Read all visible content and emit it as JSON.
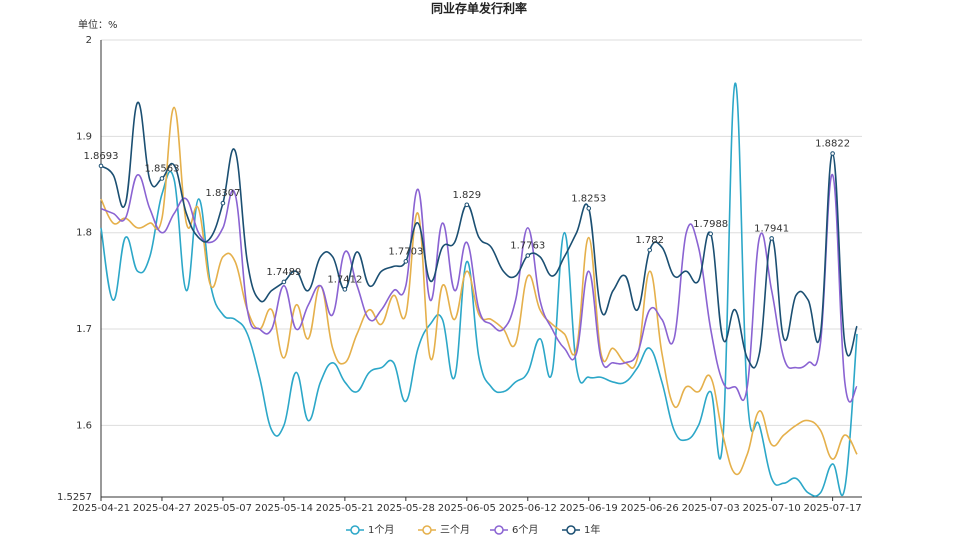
{
  "chart_data": {
    "type": "line",
    "title": "同业存单发行利率",
    "unit_label": "单位：%",
    "categories": [
      "2025-04-21",
      null,
      null,
      null,
      null,
      "2025-04-27",
      null,
      null,
      null,
      null,
      "2025-05-07",
      null,
      null,
      null,
      null,
      "2025-05-14",
      null,
      null,
      null,
      null,
      "2025-05-21",
      null,
      null,
      null,
      null,
      "2025-05-28",
      null,
      null,
      null,
      null,
      "2025-06-05",
      null,
      null,
      null,
      null,
      "2025-06-12",
      null,
      null,
      null,
      null,
      "2025-06-19",
      null,
      null,
      null,
      null,
      "2025-06-26",
      null,
      null,
      null,
      null,
      "2025-07-03",
      null,
      null,
      null,
      null,
      "2025-07-10",
      null,
      null,
      null,
      null,
      "2025-07-17",
      null,
      null
    ],
    "ylim": [
      1.5257,
      2
    ],
    "yticks": [
      1.5257,
      1.6,
      1.7,
      1.8,
      1.9,
      2
    ],
    "grid": true,
    "legend": "bottom",
    "smooth": true,
    "series": [
      {
        "name": "1个月",
        "color": "#2ca7c8",
        "values": [
          1.805,
          1.73,
          1.795,
          1.76,
          1.775,
          1.84,
          1.855,
          1.74,
          1.835,
          1.745,
          1.715,
          1.71,
          1.695,
          1.65,
          1.595,
          1.6,
          1.655,
          1.605,
          1.645,
          1.665,
          1.645,
          1.635,
          1.655,
          1.66,
          1.665,
          1.625,
          1.68,
          1.705,
          1.71,
          1.65,
          1.77,
          1.67,
          1.64,
          1.635,
          1.645,
          1.655,
          1.69,
          1.655,
          1.8,
          1.66,
          1.65,
          1.65,
          1.645,
          1.645,
          1.66,
          1.68,
          1.645,
          1.595,
          1.585,
          1.6,
          1.635,
          1.585,
          1.955,
          1.63,
          1.6,
          1.545,
          1.54,
          1.545,
          1.53,
          1.53,
          1.56,
          1.535,
          1.695
        ]
      },
      {
        "name": "三个月",
        "color": "#e5b04b",
        "values": [
          1.835,
          1.81,
          1.815,
          1.805,
          1.81,
          1.815,
          1.93,
          1.81,
          1.825,
          1.745,
          1.775,
          1.77,
          1.72,
          1.7,
          1.72,
          1.67,
          1.725,
          1.69,
          1.745,
          1.68,
          1.665,
          1.695,
          1.72,
          1.705,
          1.735,
          1.715,
          1.82,
          1.67,
          1.745,
          1.71,
          1.76,
          1.715,
          1.71,
          1.7,
          1.685,
          1.755,
          1.72,
          1.705,
          1.695,
          1.68,
          1.795,
          1.675,
          1.68,
          1.665,
          1.67,
          1.76,
          1.675,
          1.62,
          1.64,
          1.635,
          1.65,
          1.59,
          1.55,
          1.57,
          1.615,
          1.58,
          1.59,
          1.6,
          1.605,
          1.595,
          1.565,
          1.59,
          1.57
        ]
      },
      {
        "name": "6个月",
        "color": "#8a63d2",
        "values": [
          1.825,
          1.82,
          1.815,
          1.86,
          1.825,
          1.8,
          1.82,
          1.835,
          1.8,
          1.79,
          1.805,
          1.84,
          1.72,
          1.7,
          1.7,
          1.745,
          1.7,
          1.725,
          1.745,
          1.715,
          1.78,
          1.745,
          1.71,
          1.72,
          1.74,
          1.745,
          1.845,
          1.73,
          1.81,
          1.74,
          1.79,
          1.72,
          1.705,
          1.7,
          1.73,
          1.805,
          1.73,
          1.7,
          1.68,
          1.675,
          1.76,
          1.67,
          1.665,
          1.665,
          1.675,
          1.72,
          1.71,
          1.69,
          1.8,
          1.785,
          1.7,
          1.645,
          1.64,
          1.64,
          1.795,
          1.74,
          1.67,
          1.66,
          1.665,
          1.685,
          1.86,
          1.645,
          1.64
        ]
      },
      {
        "name": "1年",
        "color": "#1b4f72",
        "values": [
          1.8693,
          1.86,
          1.83,
          1.935,
          1.855,
          1.8563,
          1.87,
          1.82,
          1.795,
          1.795,
          1.8307,
          1.885,
          1.77,
          1.73,
          1.74,
          1.7489,
          1.76,
          1.74,
          1.775,
          1.775,
          1.7412,
          1.78,
          1.745,
          1.76,
          1.765,
          1.7703,
          1.81,
          1.75,
          1.785,
          1.79,
          1.829,
          1.795,
          1.785,
          1.76,
          1.755,
          1.7763,
          1.775,
          1.755,
          1.775,
          1.8,
          1.8253,
          1.72,
          1.74,
          1.755,
          1.72,
          1.782,
          1.785,
          1.755,
          1.76,
          1.75,
          1.7988,
          1.69,
          1.72,
          1.67,
          1.675,
          1.7941,
          1.69,
          1.735,
          1.73,
          1.695,
          1.8822,
          1.685,
          1.703
        ],
        "value_labels": [
          "1.8693",
          null,
          null,
          null,
          null,
          "1.8563",
          null,
          null,
          null,
          null,
          "1.8307",
          null,
          null,
          null,
          null,
          "1.7489",
          null,
          null,
          null,
          null,
          "1.7412",
          null,
          null,
          null,
          null,
          "1.7703",
          null,
          null,
          null,
          null,
          "1.829",
          null,
          null,
          null,
          null,
          "1.7763",
          null,
          null,
          null,
          null,
          "1.8253",
          null,
          null,
          null,
          null,
          "1.782",
          null,
          null,
          null,
          null,
          "1.7988",
          null,
          null,
          null,
          null,
          "1.7941",
          null,
          null,
          null,
          null,
          "1.8822",
          null,
          null
        ]
      }
    ]
  }
}
